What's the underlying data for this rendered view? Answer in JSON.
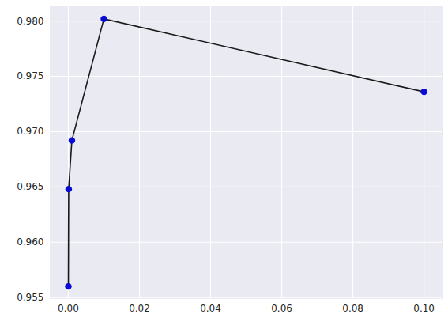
{
  "chart_data": {
    "type": "line",
    "x": [
      1e-05,
      0.0001,
      0.001,
      0.01,
      0.1
    ],
    "values": [
      0.956,
      0.9648,
      0.9692,
      0.9802,
      0.9736
    ],
    "color": "#1a1a1a",
    "marker": "circle",
    "colors": [
      "#0a0ad4",
      "#0a0ad4",
      "#0a0ad4",
      "#0a0ad4",
      "#0a0ad4"
    ],
    "xlim": [
      -0.0051,
      0.1053
    ],
    "xticks": [
      {
        "value": 0,
        "label": "0.00"
      },
      0.02,
      0.04,
      0.06,
      0.08,
      {
        "value": 0.1,
        "label": "0.10"
      }
    ],
    "ylim": [
      0.9549,
      0.9813
    ],
    "yticks": [
      0.955,
      {
        "value": 0.96,
        "label": "0.960"
      },
      0.965,
      {
        "value": 0.97,
        "label": "0.970"
      },
      0.975,
      {
        "value": 0.98,
        "label": "0.980"
      }
    ],
    "grid": true
  }
}
